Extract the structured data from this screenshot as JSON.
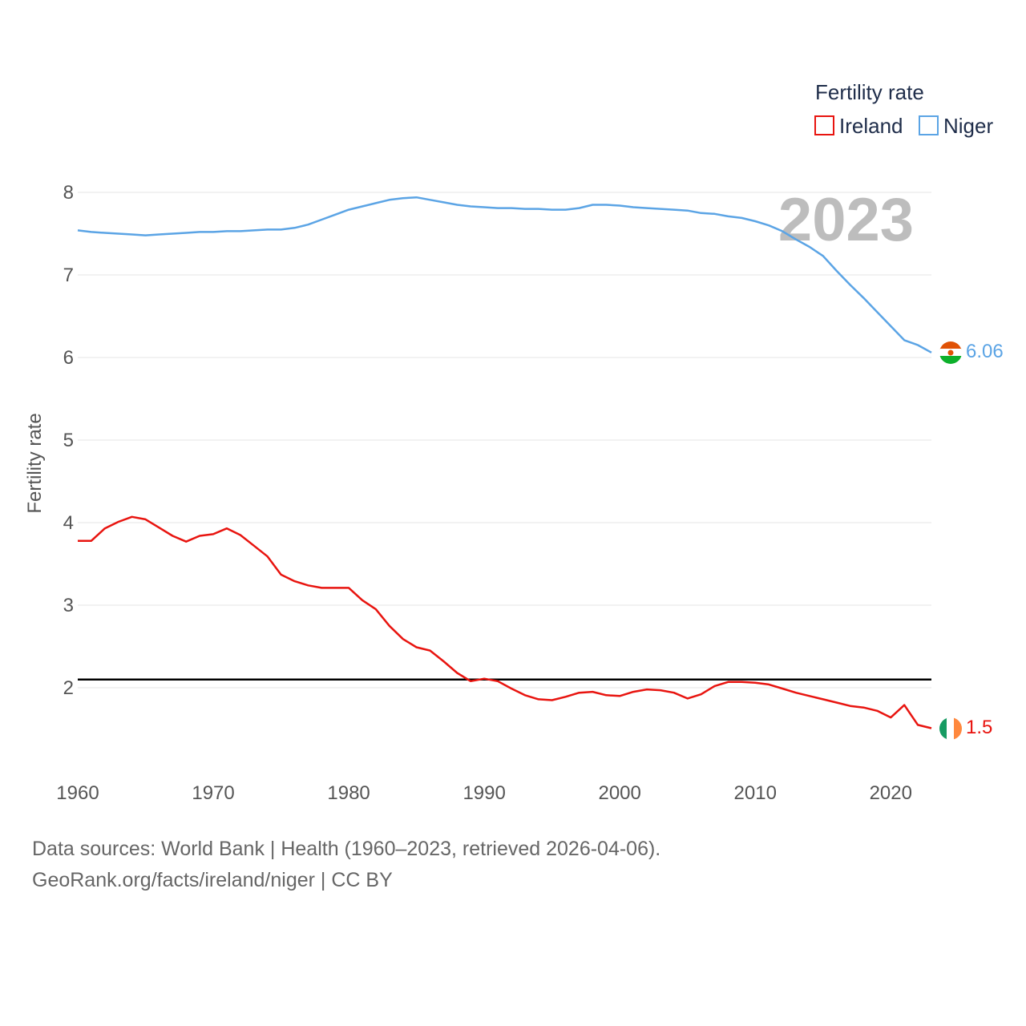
{
  "chart_data": {
    "type": "line",
    "ylabel": "Fertility rate",
    "legend_title": "Fertility rate",
    "legend_position": "top-right",
    "year_label": "2023",
    "xlim": [
      1960,
      2023
    ],
    "ylim": [
      1,
      8.3
    ],
    "xticks": [
      1960,
      1970,
      1980,
      1990,
      2000,
      2010,
      2020
    ],
    "yticks": [
      2,
      3,
      4,
      5,
      6,
      7,
      8
    ],
    "reference_line": 2.1,
    "x": [
      1960,
      1961,
      1962,
      1963,
      1964,
      1965,
      1966,
      1967,
      1968,
      1969,
      1970,
      1971,
      1972,
      1973,
      1974,
      1975,
      1976,
      1977,
      1978,
      1979,
      1980,
      1981,
      1982,
      1983,
      1984,
      1985,
      1986,
      1987,
      1988,
      1989,
      1990,
      1991,
      1992,
      1993,
      1994,
      1995,
      1996,
      1997,
      1998,
      1999,
      2000,
      2001,
      2002,
      2003,
      2004,
      2005,
      2006,
      2007,
      2008,
      2009,
      2010,
      2011,
      2012,
      2013,
      2014,
      2015,
      2016,
      2017,
      2018,
      2019,
      2020,
      2021,
      2022,
      2023
    ],
    "series": [
      {
        "name": "Ireland",
        "color": "#e8140f",
        "end_label": "1.5",
        "values": [
          3.78,
          3.78,
          3.93,
          4.01,
          4.07,
          4.04,
          3.94,
          3.84,
          3.77,
          3.84,
          3.86,
          3.93,
          3.85,
          3.72,
          3.59,
          3.37,
          3.29,
          3.24,
          3.21,
          3.21,
          3.21,
          3.06,
          2.95,
          2.75,
          2.59,
          2.49,
          2.45,
          2.32,
          2.18,
          2.08,
          2.11,
          2.08,
          1.99,
          1.91,
          1.86,
          1.85,
          1.89,
          1.94,
          1.95,
          1.91,
          1.9,
          1.95,
          1.98,
          1.97,
          1.94,
          1.87,
          1.92,
          2.02,
          2.07,
          2.07,
          2.06,
          2.04,
          1.99,
          1.94,
          1.9,
          1.86,
          1.82,
          1.78,
          1.76,
          1.72,
          1.64,
          1.79,
          1.55,
          1.51
        ]
      },
      {
        "name": "Niger",
        "color": "#5ba4e5",
        "end_label": "6.06",
        "values": [
          7.54,
          7.52,
          7.51,
          7.5,
          7.49,
          7.48,
          7.49,
          7.5,
          7.51,
          7.52,
          7.52,
          7.53,
          7.53,
          7.54,
          7.55,
          7.55,
          7.57,
          7.61,
          7.67,
          7.73,
          7.79,
          7.83,
          7.87,
          7.91,
          7.93,
          7.94,
          7.91,
          7.88,
          7.85,
          7.83,
          7.82,
          7.81,
          7.81,
          7.8,
          7.8,
          7.79,
          7.79,
          7.81,
          7.85,
          7.85,
          7.84,
          7.82,
          7.81,
          7.8,
          7.79,
          7.78,
          7.75,
          7.74,
          7.71,
          7.69,
          7.65,
          7.6,
          7.53,
          7.43,
          7.34,
          7.23,
          7.05,
          6.88,
          6.72,
          6.55,
          6.38,
          6.21,
          6.15,
          6.06
        ]
      }
    ]
  },
  "footer": {
    "sources": "Data sources: World Bank | Health (1960–2023, retrieved 2026-04-06).",
    "attribution": "GeoRank.org/facts/ireland/niger | CC BY"
  }
}
